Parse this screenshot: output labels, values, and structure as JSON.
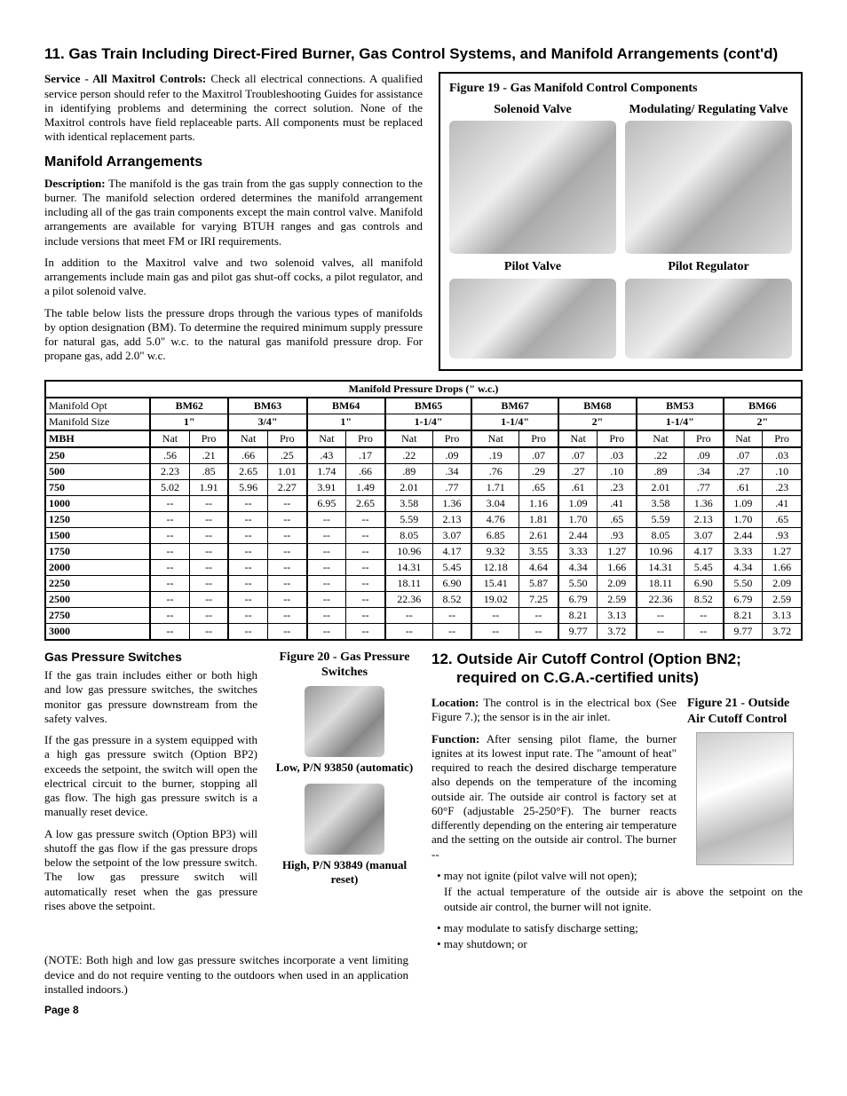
{
  "section11": {
    "title": "11. Gas Train Including Direct-Fired Burner, Gas Control Systems, and Manifold Arrangements (cont'd)",
    "service_lead": "Service - All Maxitrol Controls:",
    "service_body": " Check all electrical connections. A qualified service person should refer to the Maxitrol Troubleshooting Guides for assistance in identifying problems and determining the correct solution. None of the Maxitrol controls have field replaceable parts. All components must be replaced with identical replacement parts.",
    "manifold_heading": "Manifold Arrangements",
    "desc_lead": "Description:",
    "desc_body": " The manifold is the gas train from the gas supply connection to the burner. The manifold selection ordered determines the manifold arrangement including all of the gas train components except the main control valve. Manifold arrangements are available for varying BTUH ranges and gas controls and include versions that meet FM or IRI requirements.",
    "para2": "In addition to the Maxitrol valve and two solenoid valves, all manifold arrangements include main gas and pilot gas shut-off cocks, a pilot regulator, and a pilot solenoid valve.",
    "para3": "The table below lists the pressure drops through the various types of manifolds by option designation (BM). To determine the required minimum supply pressure for natural gas, add 5.0\" w.c. to the natural gas manifold pressure drop. For propane gas, add 2.0\" w.c."
  },
  "figure19": {
    "title": "Figure 19 - Gas Manifold Control Components",
    "c1": "Solenoid Valve",
    "c2": "Modulating/ Regulating Valve",
    "c3": "Pilot Valve",
    "c4": "Pilot Regulator"
  },
  "pdtable": {
    "title": "Manifold Pressure Drops  (\" w.c.)",
    "h_opt": "Manifold Opt",
    "h_size": "Manifold  Size",
    "models": [
      "BM62",
      "BM63",
      "BM64",
      "BM65",
      "BM67",
      "BM68",
      "BM53",
      "BM66"
    ],
    "sizes": [
      "1\"",
      "3/4\"",
      "1\"",
      "1-1/4\"",
      "1-1/4\"",
      "2\"",
      "1-1/4\"",
      "2\""
    ],
    "mbh": "MBH",
    "nat": "Nat",
    "pro": "Pro",
    "rows": [
      {
        "mbh": "250",
        "v": [
          ".56",
          ".21",
          ".66",
          ".25",
          ".43",
          ".17",
          ".22",
          ".09",
          ".19",
          ".07",
          ".07",
          ".03",
          ".22",
          ".09",
          ".07",
          ".03"
        ]
      },
      {
        "mbh": "500",
        "v": [
          "2.23",
          ".85",
          "2.65",
          "1.01",
          "1.74",
          ".66",
          ".89",
          ".34",
          ".76",
          ".29",
          ".27",
          ".10",
          ".89",
          ".34",
          ".27",
          ".10"
        ]
      },
      {
        "mbh": "750",
        "v": [
          "5.02",
          "1.91",
          "5.96",
          "2.27",
          "3.91",
          "1.49",
          "2.01",
          ".77",
          "1.71",
          ".65",
          ".61",
          ".23",
          "2.01",
          ".77",
          ".61",
          ".23"
        ]
      },
      {
        "mbh": "1000",
        "v": [
          "--",
          "--",
          "--",
          "--",
          "6.95",
          "2.65",
          "3.58",
          "1.36",
          "3.04",
          "1.16",
          "1.09",
          ".41",
          "3.58",
          "1.36",
          "1.09",
          ".41"
        ]
      },
      {
        "mbh": "1250",
        "v": [
          "--",
          "--",
          "--",
          "--",
          "--",
          "--",
          "5.59",
          "2.13",
          "4.76",
          "1.81",
          "1.70",
          ".65",
          "5.59",
          "2.13",
          "1.70",
          ".65"
        ]
      },
      {
        "mbh": "1500",
        "v": [
          "--",
          "--",
          "--",
          "--",
          "--",
          "--",
          "8.05",
          "3.07",
          "6.85",
          "2.61",
          "2.44",
          ".93",
          "8.05",
          "3.07",
          "2.44",
          ".93"
        ]
      },
      {
        "mbh": "1750",
        "v": [
          "--",
          "--",
          "--",
          "--",
          "--",
          "--",
          "10.96",
          "4.17",
          "9.32",
          "3.55",
          "3.33",
          "1.27",
          "10.96",
          "4.17",
          "3.33",
          "1.27"
        ]
      },
      {
        "mbh": "2000",
        "v": [
          "--",
          "--",
          "--",
          "--",
          "--",
          "--",
          "14.31",
          "5.45",
          "12.18",
          "4.64",
          "4.34",
          "1.66",
          "14.31",
          "5.45",
          "4.34",
          "1.66"
        ]
      },
      {
        "mbh": "2250",
        "v": [
          "--",
          "--",
          "--",
          "--",
          "--",
          "--",
          "18.11",
          "6.90",
          "15.41",
          "5.87",
          "5.50",
          "2.09",
          "18.11",
          "6.90",
          "5.50",
          "2.09"
        ]
      },
      {
        "mbh": "2500",
        "v": [
          "--",
          "--",
          "--",
          "--",
          "--",
          "--",
          "22.36",
          "8.52",
          "19.02",
          "7.25",
          "6.79",
          "2.59",
          "22.36",
          "8.52",
          "6.79",
          "2.59"
        ]
      },
      {
        "mbh": "2750",
        "v": [
          "--",
          "--",
          "--",
          "--",
          "--",
          "--",
          "--",
          "--",
          "--",
          "--",
          "8.21",
          "3.13",
          "--",
          "--",
          "8.21",
          "3.13"
        ]
      },
      {
        "mbh": "3000",
        "v": [
          "--",
          "--",
          "--",
          "--",
          "--",
          "--",
          "--",
          "--",
          "--",
          "--",
          "9.77",
          "3.72",
          "--",
          "--",
          "9.77",
          "3.72"
        ]
      }
    ]
  },
  "gps": {
    "heading": "Gas  Pressure  Switches",
    "p1": "If the gas train includes either or both high and low gas pressure switches, the switches monitor gas pressure downstream from the safety valves.",
    "p2": "If the gas pressure in a system equipped with a high gas pressure switch (Option BP2) exceeds the setpoint, the switch will open the electrical circuit to the burner, stopping all gas flow. The high gas pressure switch is a manually reset device.",
    "p3": "A low gas pressure switch (Option BP3) will shutoff the gas flow if the gas pressure drops below the setpoint of the low pressure switch. The low gas pressure switch will automatically reset when the gas pressure rises above the setpoint.",
    "p4": "(NOTE: Both high and low gas pressure switches incorporate a vent limiting device and do not require venting to the outdoors when used in an application installed indoors.)"
  },
  "figure20": {
    "title": "Figure 20 - Gas Pressure Switches",
    "low": "Low, P/N 93850 (automatic)",
    "high": "High, P/N 93849 (manual reset)"
  },
  "section12": {
    "title": "12. Outside Air Cutoff Control (Option BN2; required on C.G.A.-certified units)",
    "loc_lead": "Location:",
    "loc_body": " The control is in the electrical box (See Figure 7.); the sensor is in the air inlet.",
    "fn_lead": "Function:",
    "fn_body": " After sensing pilot flame, the burner ignites at its lowest input rate. The \"amount of heat\" required to reach the desired discharge temperature also depends on the temperature of the incoming outside air. The outside air control is factory set at 60°F (adjustable 25-250°F). The burner reacts differently depending on the entering air temperature and the setting on the outside air control. The burner --",
    "b1": "• may not ignite (pilot valve will not open);",
    "b1b": "If the actual temperature of the outside air is above the setpoint on the outside air control, the burner will not ignite.",
    "b2": "• may modulate to satisfy discharge setting;",
    "b3": "• may shutdown; or"
  },
  "figure21": {
    "title": "Figure 21 - Outside Air Cutoff Control"
  },
  "pagefoot": "Page 8"
}
